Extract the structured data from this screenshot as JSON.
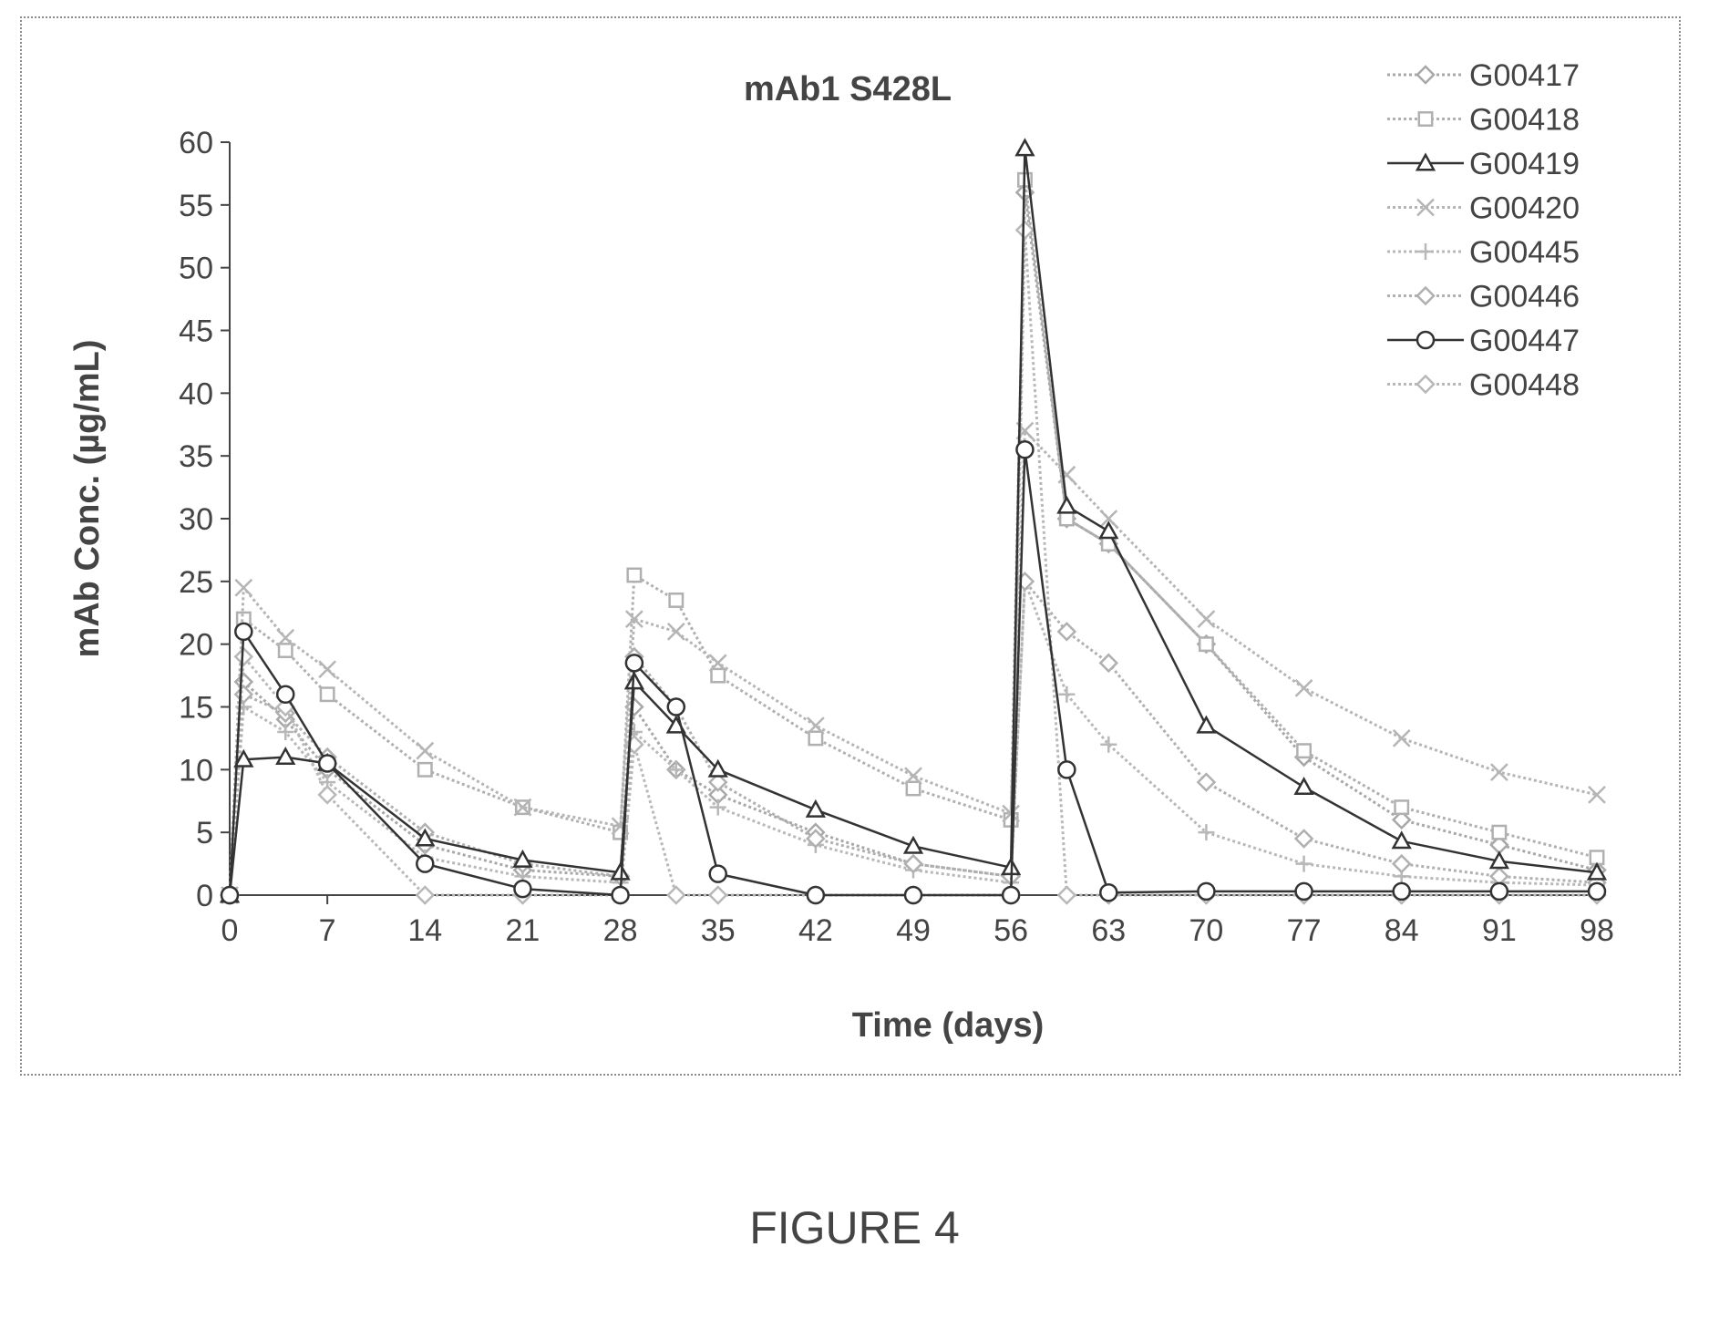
{
  "figure_caption": "FIGURE 4",
  "chart_data": {
    "type": "line",
    "title": "mAb1 S428L",
    "xlabel": "Time (days)",
    "ylabel": "mAb Conc. (µg/mL)",
    "xlim": [
      0,
      98
    ],
    "ylim": [
      0,
      60
    ],
    "xticks": [
      0,
      7,
      14,
      21,
      28,
      35,
      42,
      49,
      56,
      63,
      70,
      77,
      84,
      91,
      98
    ],
    "yticks": [
      0,
      5,
      10,
      15,
      20,
      25,
      30,
      35,
      40,
      45,
      50,
      55,
      60
    ],
    "grid": false,
    "legend_position": "top-right",
    "series": [
      {
        "name": "G00417",
        "marker": "diamond",
        "color": "#a8a8a8",
        "dash": "dotted",
        "x": [
          0,
          1,
          4,
          7,
          14,
          21,
          28,
          29,
          32,
          35,
          42,
          49,
          56,
          57,
          60,
          63,
          70,
          77,
          84,
          91,
          98
        ],
        "y": [
          0,
          17,
          14,
          10,
          4,
          2,
          1.5,
          15,
          10,
          8,
          5,
          2.5,
          1.5,
          56,
          30,
          28,
          20,
          11,
          6,
          4,
          2
        ]
      },
      {
        "name": "G00418",
        "marker": "square",
        "color": "#b0b0b0",
        "dash": "dotted",
        "x": [
          0,
          1,
          4,
          7,
          14,
          21,
          28,
          29,
          32,
          35,
          42,
          49,
          56,
          57,
          60,
          63,
          70,
          77,
          84,
          91,
          98
        ],
        "y": [
          0,
          22,
          19.5,
          16,
          10,
          7,
          5,
          25.5,
          23.5,
          17.5,
          12.5,
          8.5,
          6,
          57,
          30,
          28,
          20,
          11.5,
          7,
          5,
          3
        ]
      },
      {
        "name": "G00419",
        "marker": "triangle",
        "color": "#333333",
        "dash": "solid",
        "x": [
          0,
          1,
          4,
          7,
          14,
          21,
          28,
          29,
          32,
          35,
          42,
          49,
          56,
          57,
          60,
          63,
          70,
          77,
          84,
          91,
          98
        ],
        "y": [
          0,
          10.8,
          11,
          10.5,
          4.5,
          2.8,
          1.8,
          17,
          13.5,
          10,
          6.8,
          3.9,
          2.2,
          59.5,
          31,
          29,
          13.5,
          8.6,
          4.3,
          2.7,
          1.8
        ]
      },
      {
        "name": "G00420",
        "marker": "x",
        "color": "#b5b5b5",
        "dash": "dotted",
        "x": [
          0,
          1,
          4,
          7,
          14,
          21,
          28,
          29,
          32,
          35,
          42,
          49,
          56,
          57,
          60,
          63,
          70,
          77,
          84,
          91,
          98
        ],
        "y": [
          0,
          24.5,
          20.5,
          18,
          11.5,
          7,
          5.5,
          22,
          21,
          18.5,
          13.5,
          9.5,
          6.5,
          37,
          33.5,
          30,
          22,
          16.5,
          12.5,
          9.8,
          8
        ]
      },
      {
        "name": "G00445",
        "marker": "plus",
        "color": "#b8b8b8",
        "dash": "dotted",
        "x": [
          0,
          1,
          4,
          7,
          14,
          21,
          28,
          29,
          32,
          35,
          42,
          49,
          56,
          57,
          60,
          63,
          70,
          77,
          84,
          91,
          98
        ],
        "y": [
          0,
          15,
          13,
          9,
          3,
          1.5,
          1,
          13,
          10,
          7,
          4,
          2,
          1,
          25,
          16,
          12,
          5,
          2.5,
          1.5,
          1,
          0.8
        ]
      },
      {
        "name": "G00446",
        "marker": "diamond",
        "color": "#b0b0b0",
        "dash": "dotted",
        "x": [
          0,
          1,
          4,
          7,
          14,
          21,
          28,
          29,
          32,
          35,
          42,
          49,
          56,
          57,
          60,
          63,
          70,
          77,
          84,
          91,
          98
        ],
        "y": [
          0,
          16,
          14.5,
          11,
          5,
          2.5,
          1.5,
          19,
          15,
          9,
          4.5,
          2.5,
          1.5,
          25,
          21,
          18.5,
          9,
          4.5,
          2.5,
          1.5,
          1
        ]
      },
      {
        "name": "G00447",
        "marker": "circle",
        "color": "#333333",
        "dash": "solid",
        "x": [
          0,
          1,
          4,
          7,
          14,
          21,
          28,
          29,
          32,
          35,
          42,
          49,
          56,
          57,
          60,
          63,
          70,
          77,
          84,
          91,
          98
        ],
        "y": [
          0,
          21,
          16,
          10.5,
          2.5,
          0.5,
          0,
          18.5,
          15,
          1.7,
          0,
          0,
          0,
          35.5,
          10,
          0.2,
          0.3,
          0.3,
          0.3,
          0.3,
          0.3
        ]
      },
      {
        "name": "G00448",
        "marker": "diamond",
        "color": "#b8b8b8",
        "dash": "dotted",
        "x": [
          0,
          1,
          4,
          7,
          14,
          21,
          28,
          29,
          32,
          35,
          42,
          49,
          56,
          57,
          60,
          63,
          70,
          77,
          84,
          91,
          98
        ],
        "y": [
          0,
          19,
          15,
          8,
          0,
          0,
          0,
          12,
          0,
          0,
          0,
          0,
          0,
          53,
          0,
          0,
          0,
          0,
          0,
          0,
          0
        ]
      }
    ]
  }
}
